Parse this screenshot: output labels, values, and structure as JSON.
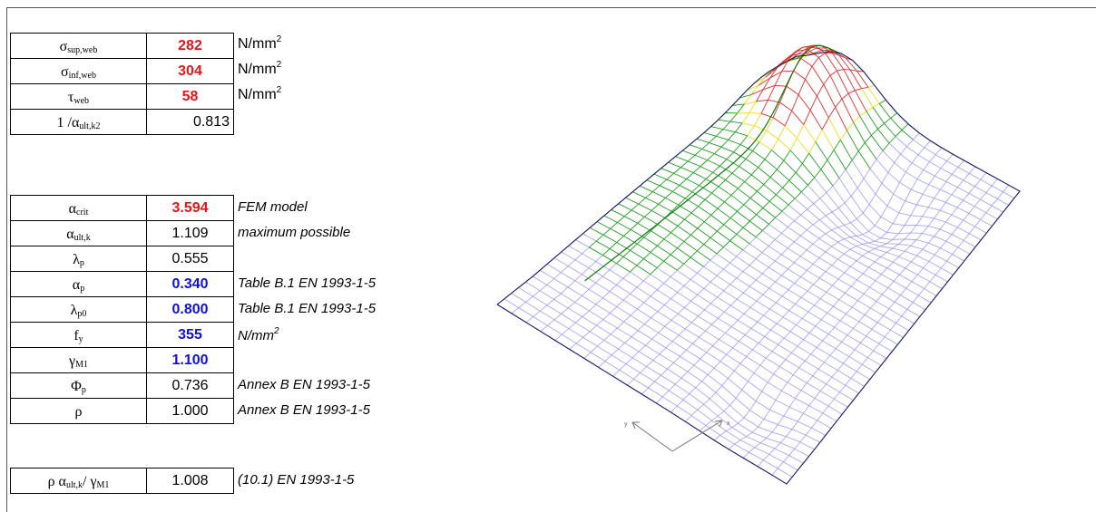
{
  "top_table": [
    {
      "symbol": "σ",
      "sub": "sup,web",
      "value": "282",
      "style": "red",
      "unit": "N/mm",
      "unit_sup": "2"
    },
    {
      "symbol": "σ",
      "sub": "inf,web",
      "value": "304",
      "style": "red",
      "unit": "N/mm",
      "unit_sup": "2"
    },
    {
      "symbol": "τ",
      "sub": "web",
      "value": "58",
      "style": "red",
      "unit": "N/mm",
      "unit_sup": "2"
    },
    {
      "prefix": "1 / ",
      "symbol": "α",
      "sub": "ult,k",
      "sup": "2",
      "value": "0.813",
      "style": "plain"
    }
  ],
  "main_table": [
    {
      "symbol": "α",
      "sub": "crit",
      "value": "3.594",
      "style": "red",
      "note": "FEM model"
    },
    {
      "symbol": "α",
      "sub": "ult,k",
      "value": "1.109",
      "style": "plain",
      "note": "maximum possible"
    },
    {
      "symbol": "λ",
      "sub": "p",
      "value": "0.555",
      "style": "plain",
      "note": ""
    },
    {
      "symbol": "α",
      "sub": "p",
      "value": "0.340",
      "style": "blue",
      "note": "Table B.1 EN 1993-1-5"
    },
    {
      "symbol": "λ",
      "sub": "p0",
      "value": "0.800",
      "style": "blue",
      "note": "Table B.1 EN 1993-1-5"
    },
    {
      "symbol": "f",
      "sub": "y",
      "value": "355",
      "style": "blue",
      "note": "N/mm",
      "note_sup": "2"
    },
    {
      "symbol": "γ",
      "sub": "M1",
      "value": "1.100",
      "style": "blue",
      "note": ""
    },
    {
      "symbol": "Φ",
      "sub": "p",
      "value": "0.736",
      "style": "plain",
      "note": "Annex B EN 1993-1-5"
    },
    {
      "symbol": "ρ",
      "sub": "",
      "value": "1.000",
      "style": "plain",
      "note": "Annex B EN 1993-1-5"
    }
  ],
  "result_row": {
    "symbol": "ρ α",
    "sub": "ult,k",
    "mid": " / γ",
    "sub2": "M1",
    "value": "1.008",
    "note": "(10.1) EN 1993-1-5"
  },
  "axis_labels": {
    "y": "y",
    "x": "x"
  },
  "colors": {
    "red": "#e8141a",
    "blue": "#1010d8",
    "mesh_flat": "#8c8cf0",
    "mesh_green": "#22a022",
    "mesh_red": "#e03030",
    "mesh_yellow": "#e8e020"
  }
}
